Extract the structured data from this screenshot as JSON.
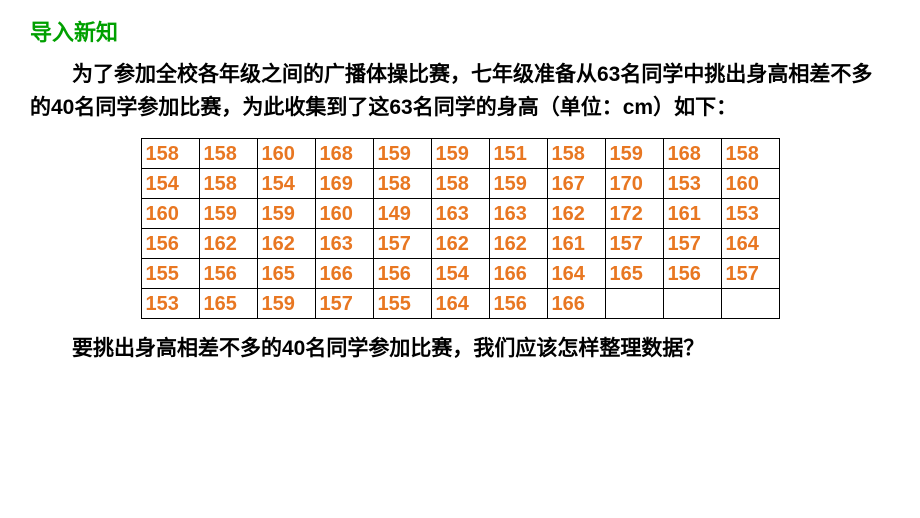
{
  "title": "导入新知",
  "paragraph1": "为了参加全校各年级之间的广播体操比赛，七年级准备从63名同学中挑出身高相差不多的40名同学参加比赛，为此收集到了这63名同学的身高（单位：cm）如下：",
  "paragraph2": "要挑出身高相差不多的40名同学参加比赛，我们应该怎样整理数据？",
  "table": {
    "columns": 11,
    "text_color": "#e87722",
    "border_color": "#000000",
    "cell_fontsize": 20,
    "rows": [
      [
        "158",
        "158",
        "160",
        "168",
        "159",
        "159",
        "151",
        "158",
        "159",
        "168",
        "158"
      ],
      [
        "154",
        "158",
        "154",
        "169",
        "158",
        "158",
        "159",
        "167",
        "170",
        "153",
        "160"
      ],
      [
        "160",
        "159",
        "159",
        "160",
        "149",
        "163",
        "163",
        "162",
        "172",
        "161",
        "153"
      ],
      [
        "156",
        "162",
        "162",
        "163",
        "157",
        "162",
        "162",
        "161",
        "157",
        "157",
        "164"
      ],
      [
        "155",
        "156",
        "165",
        "166",
        "156",
        "154",
        "166",
        "164",
        "165",
        "156",
        "157"
      ],
      [
        "153",
        "165",
        "159",
        "157",
        "155",
        "164",
        "156",
        "166",
        "",
        "",
        ""
      ]
    ]
  },
  "title_color": "#00a000",
  "body_color": "#000000",
  "background_color": "#ffffff"
}
